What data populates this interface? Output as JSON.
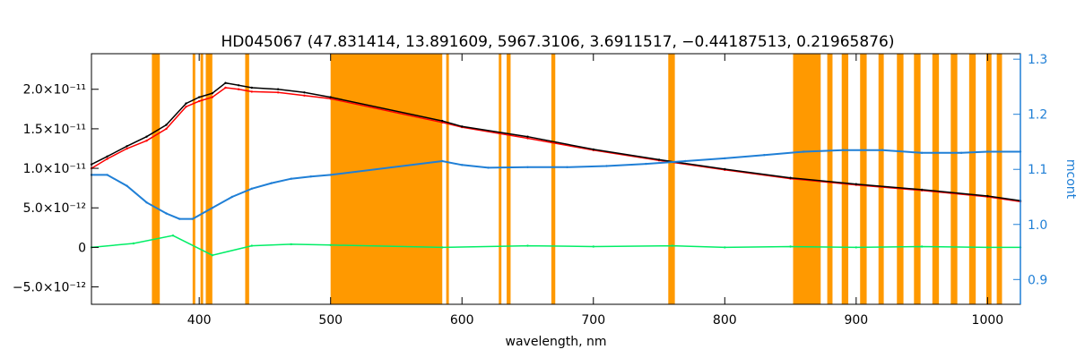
{
  "chart_data": {
    "type": "line",
    "title": "HD045067    (47.831414, 13.891609, 5967.3106, 3.6911517, −0.44187513, 0.21965876)",
    "xlabel": "wavelength, nm",
    "ylabel": "",
    "ylabel_right": "mcont",
    "xlim": [
      318,
      1025
    ],
    "ylim": [
      -7.2e-12,
      2.45e-11
    ],
    "ylim_right": [
      0.855,
      1.31
    ],
    "x_ticks": [
      400,
      500,
      600,
      700,
      800,
      900,
      1000
    ],
    "y_ticks": [
      {
        "value": -5e-12,
        "label": "−5.0×10⁻¹²"
      },
      {
        "value": 0,
        "label": "0"
      },
      {
        "value": 5e-12,
        "label": "5.0×10⁻¹²"
      },
      {
        "value": 1e-11,
        "label": "1.0×10⁻¹¹"
      },
      {
        "value": 1.5e-11,
        "label": "1.5×10⁻¹¹"
      },
      {
        "value": 2e-11,
        "label": "2.0×10⁻¹¹"
      }
    ],
    "y_ticks_right": [
      {
        "value": 0.9,
        "label": "0.9"
      },
      {
        "value": 1.0,
        "label": "1.0"
      },
      {
        "value": 1.1,
        "label": "1.1"
      },
      {
        "value": 1.2,
        "label": "1.2"
      },
      {
        "value": 1.3,
        "label": "1.3"
      }
    ],
    "masked_regions": [
      [
        364,
        370
      ],
      [
        395,
        397
      ],
      [
        401,
        403
      ],
      [
        405,
        410
      ],
      [
        435,
        438
      ],
      [
        500,
        585
      ],
      [
        588,
        590
      ],
      [
        628,
        630
      ],
      [
        634,
        637
      ],
      [
        668,
        671
      ],
      [
        757,
        762
      ],
      [
        852,
        873
      ],
      [
        878,
        882
      ],
      [
        889,
        894
      ],
      [
        903,
        908
      ],
      [
        917,
        921
      ],
      [
        931,
        936
      ],
      [
        944,
        949
      ],
      [
        958,
        963
      ],
      [
        972,
        977
      ],
      [
        986,
        991
      ],
      [
        999,
        1003
      ],
      [
        1007,
        1011
      ]
    ],
    "series": [
      {
        "color": "#ff0000",
        "x": [
          318,
          330,
          345,
          360,
          375,
          390,
          400,
          410,
          420,
          430,
          440,
          460,
          480,
          500,
          585,
          600,
          650,
          700,
          750,
          800,
          850,
          900,
          950,
          1000,
          1025
        ],
        "y": [
          1e-11,
          1.12e-11,
          1.25e-11,
          1.35e-11,
          1.5e-11,
          1.78e-11,
          1.85e-11,
          1.9e-11,
          2.02e-11,
          2e-11,
          1.97e-11,
          1.96e-11,
          1.92e-11,
          1.88e-11,
          1.58e-11,
          1.52e-11,
          1.38e-11,
          1.23e-11,
          1.1e-11,
          9.8e-12,
          8.7e-12,
          7.9e-12,
          7.2e-12,
          6.4e-12,
          5.8e-12
        ]
      },
      {
        "color": "#000000",
        "x": [
          318,
          330,
          345,
          360,
          375,
          390,
          400,
          410,
          420,
          430,
          440,
          460,
          480,
          500,
          585,
          600,
          650,
          700,
          750,
          800,
          850,
          900,
          950,
          1000,
          1025
        ],
        "y": [
          1.05e-11,
          1.15e-11,
          1.28e-11,
          1.4e-11,
          1.55e-11,
          1.82e-11,
          1.9e-11,
          1.95e-11,
          2.08e-11,
          2.05e-11,
          2.02e-11,
          2e-11,
          1.96e-11,
          1.9e-11,
          1.6e-11,
          1.53e-11,
          1.4e-11,
          1.24e-11,
          1.11e-11,
          9.9e-12,
          8.8e-12,
          8e-12,
          7.3e-12,
          6.5e-12,
          5.9e-12
        ]
      },
      {
        "color": "#00ee66",
        "x": [
          318,
          350,
          380,
          410,
          440,
          470,
          500,
          585,
          650,
          700,
          760,
          800,
          850,
          900,
          950,
          1000,
          1025
        ],
        "y": [
          0,
          5e-13,
          1.5e-12,
          -1e-12,
          2e-13,
          4e-13,
          3e-13,
          0,
          2e-13,
          1e-13,
          2e-13,
          0,
          1e-13,
          0,
          1e-13,
          0,
          0
        ]
      },
      {
        "color": "#1f7fd6",
        "axis": "right",
        "x": [
          318,
          330,
          345,
          360,
          375,
          385,
          395,
          410,
          425,
          440,
          455,
          470,
          485,
          500,
          585,
          600,
          620,
          650,
          680,
          710,
          740,
          770,
          800,
          830,
          860,
          890,
          920,
          950,
          980,
          1000,
          1025
        ],
        "y": [
          1.09,
          1.09,
          1.07,
          1.04,
          1.02,
          1.01,
          1.01,
          1.03,
          1.05,
          1.065,
          1.075,
          1.083,
          1.087,
          1.09,
          1.115,
          1.108,
          1.103,
          1.104,
          1.104,
          1.106,
          1.11,
          1.115,
          1.12,
          1.126,
          1.132,
          1.135,
          1.135,
          1.13,
          1.13,
          1.132,
          1.132
        ]
      }
    ]
  }
}
